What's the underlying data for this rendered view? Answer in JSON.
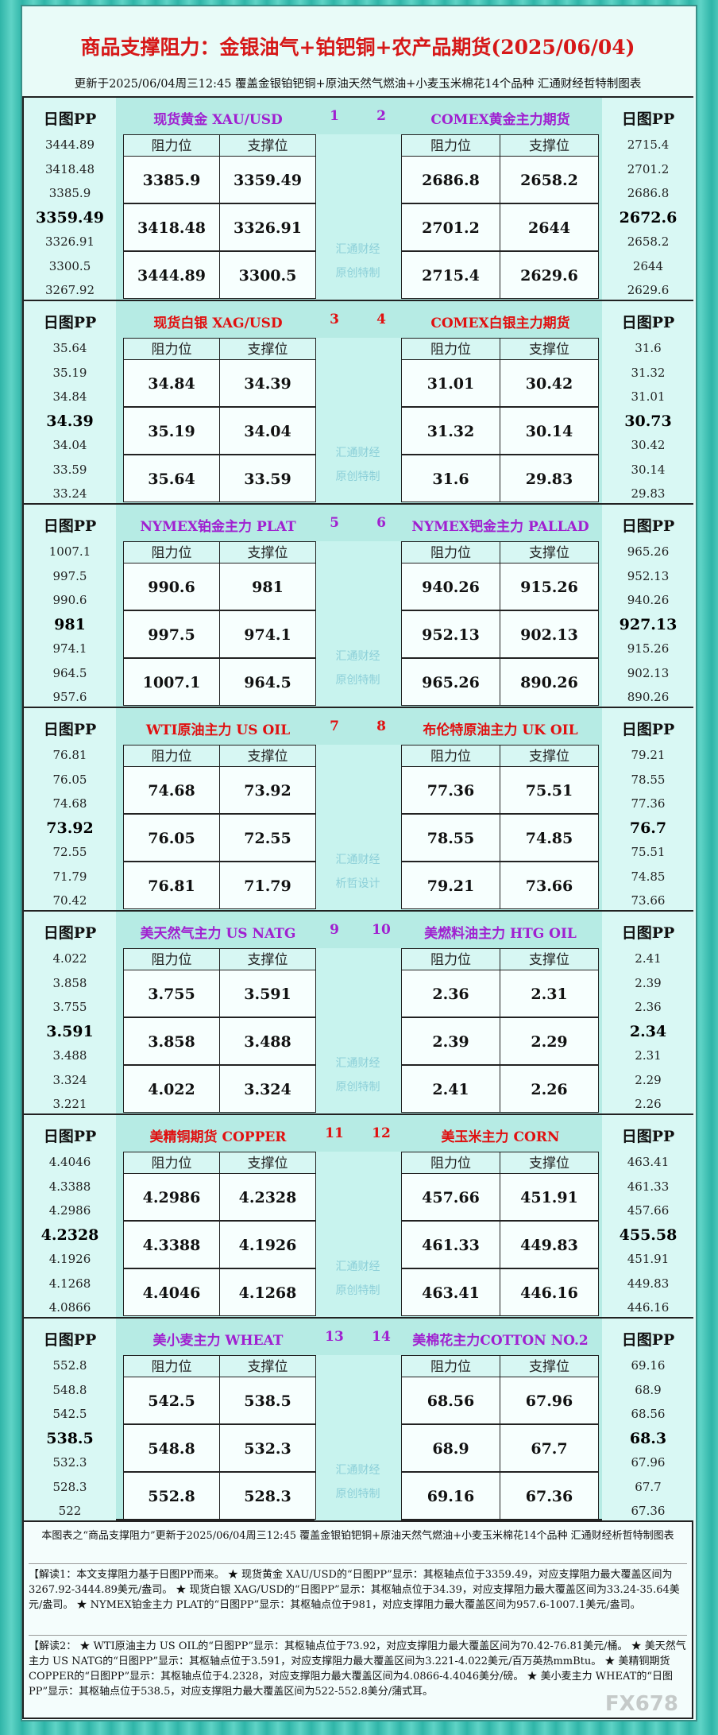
{
  "header": {
    "title": "商品支撑阻力：金银油气+铂钯铜+农产品期货(2025/06/04)",
    "subtitle": "更新于2025/06/04周三12:45 覆盖金银铂钯铜+原油天然气燃油+小麦玉米棉花14个品种 汇通财经哲特制图表"
  },
  "labels": {
    "pp": "日图PP",
    "resistance": "阻力位",
    "support": "支撑位"
  },
  "rows": [
    {
      "left": {
        "name": "现货黄金 XAU/USD",
        "number": "1",
        "pp": [
          "3444.89",
          "3418.48",
          "3385.9",
          "3359.49",
          "3326.91",
          "3300.5",
          "3267.92"
        ],
        "levels": [
          [
            "3385.9",
            "3359.49"
          ],
          [
            "3418.48",
            "3326.91"
          ],
          [
            "3444.89",
            "3300.5"
          ]
        ]
      },
      "right": {
        "name": "COMEX黄金主力期货",
        "number": "2",
        "pp": [
          "2715.4",
          "2701.2",
          "2686.8",
          "2672.6",
          "2658.2",
          "2644",
          "2629.6"
        ],
        "levels": [
          [
            "2686.8",
            "2658.2"
          ],
          [
            "2701.2",
            "2644"
          ],
          [
            "2715.4",
            "2629.6"
          ]
        ]
      },
      "watermark": [
        "汇通财经",
        "原创特制"
      ]
    },
    {
      "left": {
        "name": "现货白银 XAG/USD",
        "number": "3",
        "pp": [
          "35.64",
          "35.19",
          "34.84",
          "34.39",
          "34.04",
          "33.59",
          "33.24"
        ],
        "levels": [
          [
            "34.84",
            "34.39"
          ],
          [
            "35.19",
            "34.04"
          ],
          [
            "35.64",
            "33.59"
          ]
        ]
      },
      "right": {
        "name": "COMEX白银主力期货",
        "number": "4",
        "pp": [
          "31.6",
          "31.32",
          "31.01",
          "30.73",
          "30.42",
          "30.14",
          "29.83"
        ],
        "levels": [
          [
            "31.01",
            "30.42"
          ],
          [
            "31.32",
            "30.14"
          ],
          [
            "31.6",
            "29.83"
          ]
        ]
      },
      "watermark": [
        "汇通财经",
        "原创特制"
      ]
    },
    {
      "left": {
        "name": "NYMEX铂金主力 PLAT",
        "number": "5",
        "pp": [
          "1007.1",
          "997.5",
          "990.6",
          "981",
          "974.1",
          "964.5",
          "957.6"
        ],
        "levels": [
          [
            "990.6",
            "981"
          ],
          [
            "997.5",
            "974.1"
          ],
          [
            "1007.1",
            "964.5"
          ]
        ]
      },
      "right": {
        "name": "NYMEX钯金主力 PALLAD",
        "number": "6",
        "pp": [
          "965.26",
          "952.13",
          "940.26",
          "927.13",
          "915.26",
          "902.13",
          "890.26"
        ],
        "levels": [
          [
            "940.26",
            "915.26"
          ],
          [
            "952.13",
            "902.13"
          ],
          [
            "965.26",
            "890.26"
          ]
        ]
      },
      "watermark": [
        "汇通财经",
        "原创特制"
      ]
    },
    {
      "left": {
        "name": "WTI原油主力 US OIL",
        "number": "7",
        "pp": [
          "76.81",
          "76.05",
          "74.68",
          "73.92",
          "72.55",
          "71.79",
          "70.42"
        ],
        "levels": [
          [
            "74.68",
            "73.92"
          ],
          [
            "76.05",
            "72.55"
          ],
          [
            "76.81",
            "71.79"
          ]
        ]
      },
      "right": {
        "name": "布伦特原油主力 UK OIL",
        "number": "8",
        "pp": [
          "79.21",
          "78.55",
          "77.36",
          "76.7",
          "75.51",
          "74.85",
          "73.66"
        ],
        "levels": [
          [
            "77.36",
            "75.51"
          ],
          [
            "78.55",
            "74.85"
          ],
          [
            "79.21",
            "73.66"
          ]
        ]
      },
      "watermark": [
        "汇通财经",
        "析哲设计"
      ]
    },
    {
      "left": {
        "name": "美天然气主力 US NATG",
        "number": "9",
        "pp": [
          "4.022",
          "3.858",
          "3.755",
          "3.591",
          "3.488",
          "3.324",
          "3.221"
        ],
        "levels": [
          [
            "3.755",
            "3.591"
          ],
          [
            "3.858",
            "3.488"
          ],
          [
            "4.022",
            "3.324"
          ]
        ]
      },
      "right": {
        "name": "美燃料油主力 HTG OIL",
        "number": "10",
        "pp": [
          "2.41",
          "2.39",
          "2.36",
          "2.34",
          "2.31",
          "2.29",
          "2.26"
        ],
        "levels": [
          [
            "2.36",
            "2.31"
          ],
          [
            "2.39",
            "2.29"
          ],
          [
            "2.41",
            "2.26"
          ]
        ]
      },
      "watermark": [
        "汇通财经",
        "原创特制"
      ]
    },
    {
      "left": {
        "name": "美精铜期货 COPPER",
        "number": "11",
        "pp": [
          "4.4046",
          "4.3388",
          "4.2986",
          "4.2328",
          "4.1926",
          "4.1268",
          "4.0866"
        ],
        "levels": [
          [
            "4.2986",
            "4.2328"
          ],
          [
            "4.3388",
            "4.1926"
          ],
          [
            "4.4046",
            "4.1268"
          ]
        ]
      },
      "right": {
        "name": "美玉米主力 CORN",
        "number": "12",
        "pp": [
          "463.41",
          "461.33",
          "457.66",
          "455.58",
          "451.91",
          "449.83",
          "446.16"
        ],
        "levels": [
          [
            "457.66",
            "451.91"
          ],
          [
            "461.33",
            "449.83"
          ],
          [
            "463.41",
            "446.16"
          ]
        ]
      },
      "watermark": [
        "汇通财经",
        "原创特制"
      ]
    },
    {
      "left": {
        "name": "美小麦主力 WHEAT",
        "number": "13",
        "pp": [
          "552.8",
          "548.8",
          "542.5",
          "538.5",
          "532.3",
          "528.3",
          "522"
        ],
        "levels": [
          [
            "542.5",
            "538.5"
          ],
          [
            "548.8",
            "532.3"
          ],
          [
            "552.8",
            "528.3"
          ]
        ]
      },
      "right": {
        "name": "美棉花主力COTTON NO.2",
        "number": "14",
        "pp": [
          "69.16",
          "68.9",
          "68.56",
          "68.3",
          "67.96",
          "67.7",
          "67.36"
        ],
        "levels": [
          [
            "68.56",
            "67.96"
          ],
          [
            "68.9",
            "67.7"
          ],
          [
            "69.16",
            "67.36"
          ]
        ]
      },
      "watermark": [
        "汇通财经",
        "原创特制"
      ]
    }
  ],
  "footer": {
    "summary": "本图表之“商品支撑阻力”更新于2025/06/04周三12:45 覆盖金银铂钯铜+原油天然气燃油+小麦玉米棉花14个品种 汇通财经析哲特制图表",
    "notes": [
      "【解读1：本文支撑阻力基于日图PP而来。 ★ 现货黄金 XAU/USD的“日图PP”显示：其枢轴点位于3359.49，对应支撑阻力最大覆盖区间为3267.92-3444.89美元/盎司。 ★ 现货白银 XAG/USD的“日图PP”显示：其枢轴点位于34.39，对应支撑阻力最大覆盖区间为33.24-35.64美元/盎司。 ★ NYMEX铂金主力 PLAT的“日图PP”显示：其枢轴点位于981，对应支撑阻力最大覆盖区间为957.6-1007.1美元/盎司。",
      "【解读2： ★ WTI原油主力 US OIL的“日图PP”显示：其枢轴点位于73.92，对应支撑阻力最大覆盖区间为70.42-76.81美元/桶。 ★ 美天然气主力 US NATG的“日图PP”显示：其枢轴点位于3.591，对应支撑阻力最大覆盖区间为3.221-4.022美元/百万英热mmBtu。 ★ 美精铜期货 COPPER的“日图PP”显示：其枢轴点位于4.2328，对应支撑阻力最大覆盖区间为4.0866-4.4046美分/磅。 ★ 美小麦主力 WHEAT的“日图PP”显示：其枢轴点位于538.5，对应支撑阻力最大覆盖区间为522-552.8美分/蒲式耳。"
    ]
  },
  "watermark": "FX678"
}
